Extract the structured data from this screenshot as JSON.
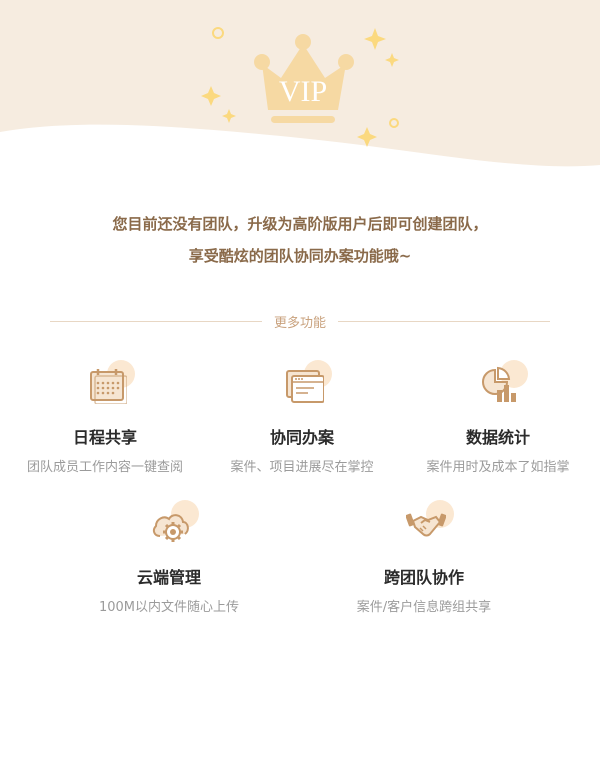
{
  "hero": {
    "badge_text": "VIP",
    "bg_color": "#f6ece0",
    "crown_color": "#f6d9a3",
    "sparkle_color": "#fbd97f"
  },
  "intro": {
    "line1": "您目前还没有团队，升级为高阶版用户后即可创建团队，",
    "line2": "享受酷炫的团队协同办案功能哦~"
  },
  "section": {
    "title": "更多功能"
  },
  "features": [
    {
      "icon": "calendar-icon",
      "title": "日程共享",
      "desc": "团队成员工作内容一键查阅"
    },
    {
      "icon": "window-icon",
      "title": "协同办案",
      "desc": "案件、项目进展尽在掌控"
    },
    {
      "icon": "chart-icon",
      "title": "数据统计",
      "desc": "案件用时及成本了如指掌"
    },
    {
      "icon": "cloud-gear-icon",
      "title": "云端管理",
      "desc": "100M以内文件随心上传"
    },
    {
      "icon": "handshake-icon",
      "title": "跨团队协作",
      "desc": "案件/客户信息跨组共享"
    }
  ],
  "colors": {
    "accent": "#c7996a",
    "bubble": "#fbe8d2",
    "text_brown": "#8a6a4a",
    "text_gray": "#9b9b9b"
  }
}
